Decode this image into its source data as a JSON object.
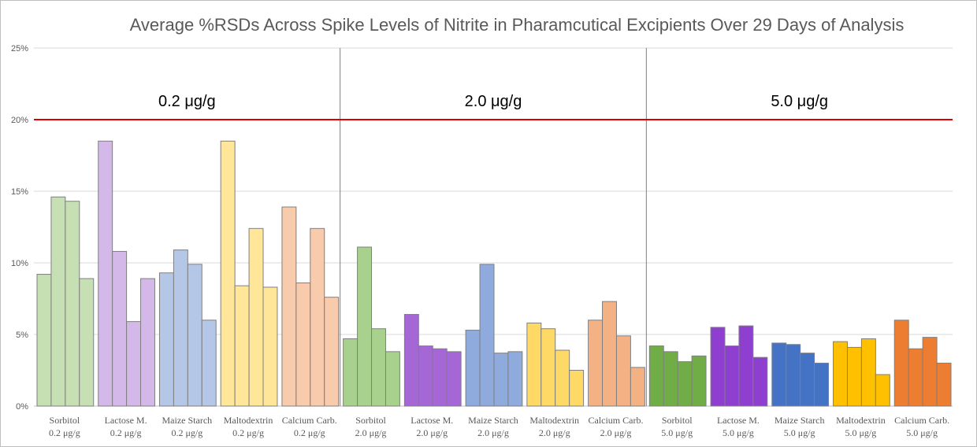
{
  "chart_data": {
    "type": "bar",
    "title": "Average %RSDs Across Spike Levels of Nitrite in Pharamcutical Excipients Over 29 Days of Analysis",
    "xlabel": "",
    "ylabel": "",
    "ylim": [
      0,
      25
    ],
    "y_ticks": [
      "0%",
      "5%",
      "10%",
      "15%",
      "20%",
      "25%"
    ],
    "grid": true,
    "legend": "none",
    "threshold": {
      "value": 20,
      "color": "#e00000"
    },
    "sections": [
      {
        "label": "0.2 μg/g"
      },
      {
        "label": "2.0 μg/g"
      },
      {
        "label": "5.0 μg/g"
      }
    ],
    "categories": [
      {
        "name": "Sorbitol",
        "spike": "0.2 μg/g",
        "color": "#c6e0b4",
        "values": [
          9.2,
          14.6,
          14.3,
          8.9
        ]
      },
      {
        "name": "Lactose M.",
        "spike": "0.2 μg/g",
        "color": "#d5b8ea",
        "values": [
          18.5,
          10.8,
          5.9,
          8.9
        ]
      },
      {
        "name": "Maize Starch",
        "spike": "0.2 μg/g",
        "color": "#b4c7e7",
        "values": [
          9.3,
          10.9,
          9.9,
          6.0
        ]
      },
      {
        "name": "Maltodextrin",
        "spike": "0.2 μg/g",
        "color": "#ffe699",
        "values": [
          18.5,
          8.4,
          12.4,
          8.3
        ]
      },
      {
        "name": "Calcium Carb.",
        "spike": "0.2 μg/g",
        "color": "#f8cbad",
        "values": [
          13.9,
          8.6,
          12.4,
          7.6
        ]
      },
      {
        "name": "Sorbitol",
        "spike": "2.0 μg/g",
        "color": "#a9d18e",
        "values": [
          4.7,
          11.1,
          5.4,
          3.8
        ]
      },
      {
        "name": "Lactose M.",
        "spike": "2.0 μg/g",
        "color": "#a566d6",
        "values": [
          6.4,
          4.2,
          4.0,
          3.8
        ]
      },
      {
        "name": "Maize Starch",
        "spike": "2.0 μg/g",
        "color": "#8faadc",
        "values": [
          5.3,
          9.9,
          3.7,
          3.8
        ]
      },
      {
        "name": "Maltodextrin",
        "spike": "2.0 μg/g",
        "color": "#ffd966",
        "values": [
          5.8,
          5.4,
          3.9,
          2.5
        ]
      },
      {
        "name": "Calcium Carb.",
        "spike": "2.0 μg/g",
        "color": "#f4b183",
        "values": [
          6.0,
          7.3,
          4.9,
          2.7
        ]
      },
      {
        "name": "Sorbitol",
        "spike": "5.0 μg/g",
        "color": "#70ad47",
        "values": [
          4.2,
          3.8,
          3.1,
          3.5
        ]
      },
      {
        "name": "Lactose M.",
        "spike": "5.0 μg/g",
        "color": "#8e3fcf",
        "values": [
          5.5,
          4.2,
          5.6,
          3.4
        ]
      },
      {
        "name": "Maize Starch",
        "spike": "5.0 μg/g",
        "color": "#4472c4",
        "values": [
          4.4,
          4.3,
          3.7,
          3.0
        ]
      },
      {
        "name": "Maltodextrin",
        "spike": "5.0 μg/g",
        "color": "#ffc000",
        "values": [
          4.5,
          4.1,
          4.7,
          2.2
        ]
      },
      {
        "name": "Calcium Carb.",
        "spike": "5.0 μg/g",
        "color": "#ed7d31",
        "values": [
          6.0,
          4.0,
          4.8,
          3.0
        ]
      }
    ]
  }
}
